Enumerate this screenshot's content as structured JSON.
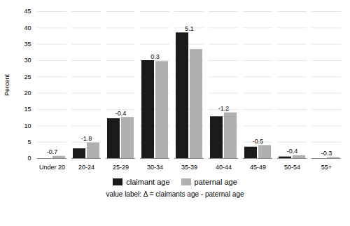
{
  "chart_data": {
    "type": "bar",
    "categories": [
      "Under 20",
      "20-24",
      "25-29",
      "30-34",
      "35-39",
      "40-44",
      "45-49",
      "50-54",
      "55+"
    ],
    "series": [
      {
        "name": "claimant age",
        "color": "#1a1a1a",
        "values": [
          0.0,
          3.0,
          12.2,
          30.0,
          38.5,
          12.8,
          3.5,
          0.5,
          0.0
        ]
      },
      {
        "name": "paternal age",
        "color": "#b0b0b0",
        "values": [
          0.7,
          4.8,
          12.6,
          29.7,
          33.4,
          14.0,
          4.0,
          0.9,
          0.3
        ]
      }
    ],
    "annotations": [
      "-0.7",
      "-1.8",
      "-0.4",
      "0.3",
      "5.1",
      "-1.2",
      "-0.5",
      "-0.4",
      "-0.3"
    ],
    "footnote": "value label: Δ = claimants age - paternal age",
    "ylabel": "Percent",
    "ylim": [
      0,
      45
    ],
    "yticks": [
      0,
      5,
      10,
      15,
      20,
      25,
      30,
      35,
      40,
      45
    ],
    "grid": true,
    "legend": "bottom"
  }
}
